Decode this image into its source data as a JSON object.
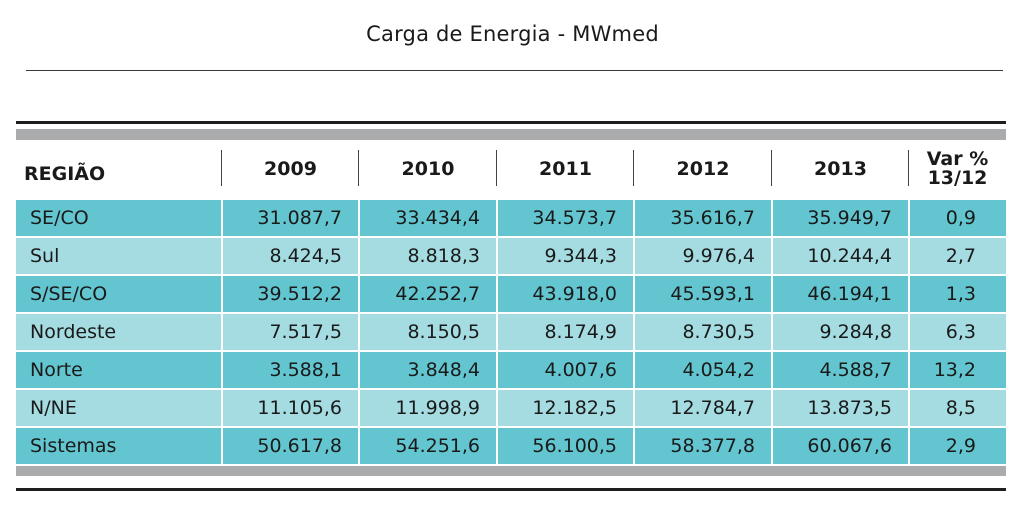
{
  "title": "Carga de Energia - MWmed",
  "table": {
    "headers": {
      "region": "REGIÃO",
      "y2009": "2009",
      "y2010": "2010",
      "y2011": "2011",
      "y2012": "2012",
      "y2013": "2013",
      "var_line1": "Var %",
      "var_line2": "13/12"
    },
    "rows": [
      {
        "region": "SE/CO",
        "v2009": "31.087,7",
        "v2010": "33.434,4",
        "v2011": "34.573,7",
        "v2012": "35.616,7",
        "v2013": "35.949,7",
        "var": "0,9"
      },
      {
        "region": "Sul",
        "v2009": "8.424,5",
        "v2010": "8.818,3",
        "v2011": "9.344,3",
        "v2012": "9.976,4",
        "v2013": "10.244,4",
        "var": "2,7"
      },
      {
        "region": "S/SE/CO",
        "v2009": "39.512,2",
        "v2010": "42.252,7",
        "v2011": "43.918,0",
        "v2012": "45.593,1",
        "v2013": "46.194,1",
        "var": "1,3"
      },
      {
        "region": "Nordeste",
        "v2009": "7.517,5",
        "v2010": "8.150,5",
        "v2011": "8.174,9",
        "v2012": "8.730,5",
        "v2013": "9.284,8",
        "var": "6,3"
      },
      {
        "region": "Norte",
        "v2009": "3.588,1",
        "v2010": "3.848,4",
        "v2011": "4.007,6",
        "v2012": "4.054,2",
        "v2013": "4.588,7",
        "var": "13,2"
      },
      {
        "region": "N/NE",
        "v2009": "11.105,6",
        "v2010": "11.998,9",
        "v2011": "12.182,5",
        "v2012": "12.784,7",
        "v2013": "13.873,5",
        "var": "8,5"
      },
      {
        "region": "Sistemas",
        "v2009": "50.617,8",
        "v2010": "54.251,6",
        "v2011": "56.100,5",
        "v2012": "58.377,8",
        "v2013": "60.067,6",
        "var": "2,9"
      }
    ],
    "colors": {
      "row_dark": "#62c5cf",
      "row_light": "#a4dce1",
      "rule_gray": "#a9abad"
    }
  }
}
